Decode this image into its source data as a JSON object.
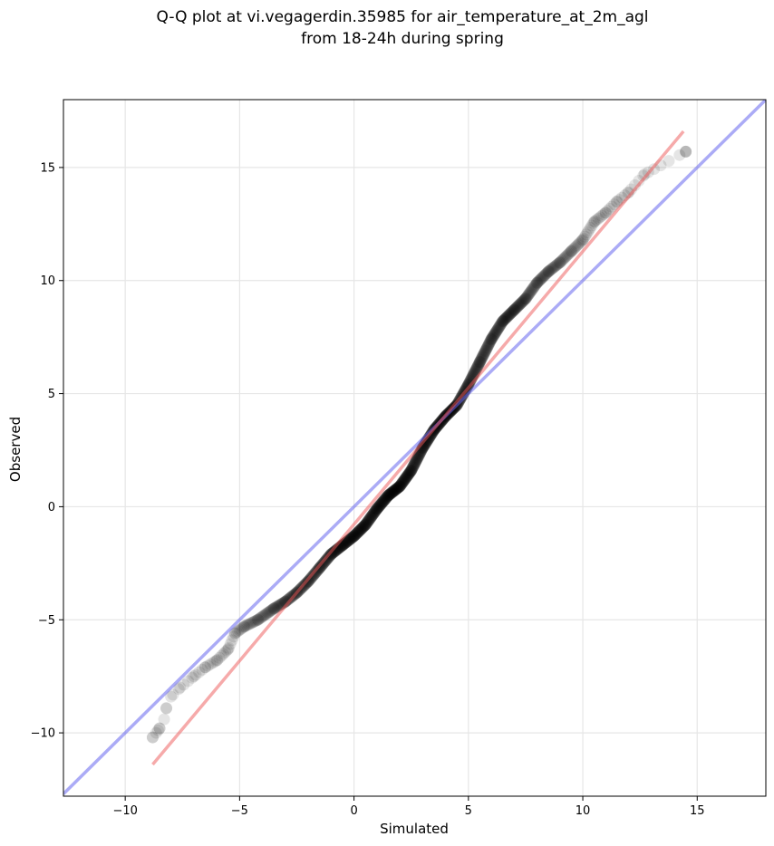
{
  "chart_data": {
    "type": "scatter",
    "title_lines": [
      "Q-Q plot at vi.vegagerdin.35985 for air_temperature_at_2m_agl",
      "from 18-24h during spring"
    ],
    "xlabel": "Simulated",
    "ylabel": "Observed",
    "xlim": [
      -12.7,
      18.0
    ],
    "ylim": [
      -12.8,
      18.0
    ],
    "x_ticks": [
      -10,
      -5,
      0,
      5,
      10,
      15
    ],
    "y_ticks": [
      -10,
      -5,
      0,
      5,
      10,
      15
    ],
    "x_tick_labels": [
      "−10",
      "−5",
      "0",
      "5",
      "10",
      "15"
    ],
    "y_tick_labels": [
      "−10",
      "−5",
      "0",
      "5",
      "10",
      "15"
    ],
    "grid": true,
    "point_color": "#000000",
    "qq_curve": [
      [
        -8.8,
        -10.2
      ],
      [
        -8.5,
        -9.8
      ],
      [
        -8.3,
        -9.4
      ],
      [
        -8.2,
        -8.9
      ],
      [
        -8.0,
        -8.4
      ],
      [
        -7.6,
        -8.0
      ],
      [
        -7.0,
        -7.5
      ],
      [
        -6.5,
        -7.1
      ],
      [
        -6.0,
        -6.8
      ],
      [
        -5.5,
        -6.3
      ],
      [
        -5.2,
        -5.6
      ],
      [
        -4.8,
        -5.3
      ],
      [
        -4.2,
        -5.0
      ],
      [
        -3.5,
        -4.5
      ],
      [
        -3.0,
        -4.2
      ],
      [
        -2.5,
        -3.8
      ],
      [
        -2.0,
        -3.3
      ],
      [
        -1.5,
        -2.7
      ],
      [
        -1.0,
        -2.1
      ],
      [
        -0.5,
        -1.7
      ],
      [
        0.0,
        -1.3
      ],
      [
        0.5,
        -0.8
      ],
      [
        1.0,
        -0.1
      ],
      [
        1.5,
        0.5
      ],
      [
        2.0,
        0.9
      ],
      [
        2.5,
        1.6
      ],
      [
        3.0,
        2.6
      ],
      [
        3.5,
        3.4
      ],
      [
        4.0,
        4.0
      ],
      [
        4.5,
        4.5
      ],
      [
        5.0,
        5.4
      ],
      [
        5.5,
        6.4
      ],
      [
        6.0,
        7.4
      ],
      [
        6.5,
        8.2
      ],
      [
        7.0,
        8.7
      ],
      [
        7.5,
        9.2
      ],
      [
        8.0,
        9.9
      ],
      [
        8.5,
        10.4
      ],
      [
        9.0,
        10.8
      ],
      [
        9.5,
        11.3
      ],
      [
        10.0,
        11.8
      ],
      [
        10.5,
        12.6
      ],
      [
        11.0,
        13.0
      ],
      [
        11.5,
        13.5
      ],
      [
        12.0,
        13.9
      ],
      [
        12.7,
        14.7
      ],
      [
        14.5,
        15.7
      ]
    ],
    "identity_line": {
      "color": "#6666ee",
      "x": [
        -12.7,
        18.0
      ],
      "y": [
        -12.7,
        18.0
      ]
    },
    "fit_line": {
      "color": "#ee5555",
      "x": [
        -8.8,
        14.4
      ],
      "y": [
        -11.4,
        16.6
      ]
    }
  }
}
